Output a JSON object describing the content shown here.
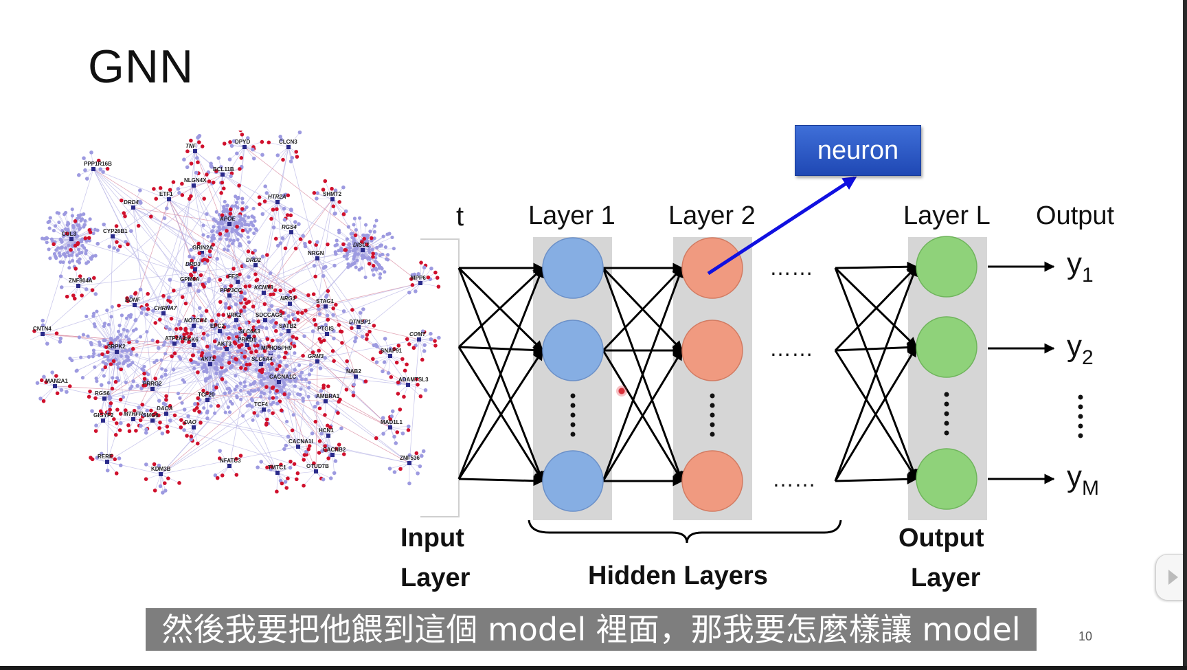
{
  "slide": {
    "title": "GNN",
    "page_number": "10",
    "subtitle": "然後我要把他餵到這個 model 裡面，那我要怎麼樣讓 model"
  },
  "neuron_callout": {
    "label": "neuron"
  },
  "network": {
    "column_labels": {
      "input_top": "t",
      "layer1": "Layer 1",
      "layer2": "Layer 2",
      "layerL": "Layer L",
      "output": "Output"
    },
    "input_layer_label": [
      "Input",
      "Layer"
    ],
    "hidden_layers_label": "Hidden Layers",
    "output_layer_label": [
      "Output",
      "Layer"
    ],
    "outputs": [
      {
        "base": "y",
        "sub": "1"
      },
      {
        "base": "y",
        "sub": "2"
      },
      {
        "base": "y",
        "sub": "M"
      }
    ],
    "ellipsis": "……",
    "colors": {
      "layer1_fill": "#86aee3",
      "layer2_fill": "#f09a80",
      "layerL_fill": "#8fd27a",
      "column_bg": "#d6d6d6",
      "callout_arrow": "#1010e0"
    }
  },
  "gene_network": {
    "colors": {
      "node_blue": "#9d9ae0",
      "node_red": "#d0102c",
      "edge_blue": "#b9b6e6",
      "edge_red": "#d98aa0"
    },
    "hubs": [
      {
        "label": "PPP1R16B",
        "italic": false
      },
      {
        "label": "TNF",
        "italic": true
      },
      {
        "label": "DPYD",
        "italic": false
      },
      {
        "label": "CLCN3",
        "italic": false
      },
      {
        "label": "BCL11B",
        "italic": false
      },
      {
        "label": "NLGN4X",
        "italic": false
      },
      {
        "label": "ETF1",
        "italic": false
      },
      {
        "label": "HTR2A",
        "italic": true
      },
      {
        "label": "SHMT2",
        "italic": false
      },
      {
        "label": "DRD4",
        "italic": true
      },
      {
        "label": "CUL3",
        "italic": false
      },
      {
        "label": "CYP26B1",
        "italic": false
      },
      {
        "label": "APOE",
        "italic": true
      },
      {
        "label": "RGS4",
        "italic": true
      },
      {
        "label": "GRIN2A",
        "italic": false
      },
      {
        "label": "DRD3",
        "italic": true
      },
      {
        "label": "DRD2",
        "italic": true
      },
      {
        "label": "NRGN",
        "italic": false
      },
      {
        "label": "DISC1",
        "italic": true
      },
      {
        "label": "GPM6A",
        "italic": false
      },
      {
        "label": "FES",
        "italic": false
      },
      {
        "label": "ZNF804A",
        "italic": false
      },
      {
        "label": "PPP3CC",
        "italic": true
      },
      {
        "label": "KCNN3",
        "italic": true
      },
      {
        "label": "MPP6",
        "italic": false
      },
      {
        "label": "BDNF",
        "italic": true
      },
      {
        "label": "CHRNA7",
        "italic": true
      },
      {
        "label": "NRG1",
        "italic": true
      },
      {
        "label": "STAG1",
        "italic": false
      },
      {
        "label": "VRK2",
        "italic": false
      },
      {
        "label": "SDCCAG8",
        "italic": false
      },
      {
        "label": "NOTCH4",
        "italic": true
      },
      {
        "label": "EPC2",
        "italic": false
      },
      {
        "label": "SATB2",
        "italic": false
      },
      {
        "label": "DTNBP1",
        "italic": true
      },
      {
        "label": "CNTN4",
        "italic": false
      },
      {
        "label": "SLC6A3",
        "italic": true
      },
      {
        "label": "PTGIS",
        "italic": false
      },
      {
        "label": "COMT",
        "italic": true
      },
      {
        "label": "SRPK2",
        "italic": false
      },
      {
        "label": "ATP2A2",
        "italic": false
      },
      {
        "label": "PAK6",
        "italic": false
      },
      {
        "label": "AKT3",
        "italic": false
      },
      {
        "label": "PRKD1",
        "italic": false
      },
      {
        "label": "MPHOSPH9",
        "italic": false
      },
      {
        "label": "SNAP91",
        "italic": false
      },
      {
        "label": "AKT1",
        "italic": true
      },
      {
        "label": "SLC6A4",
        "italic": true
      },
      {
        "label": "GRM3",
        "italic": true
      },
      {
        "label": "NAB2",
        "italic": false
      },
      {
        "label": "MAN2A1",
        "italic": false
      },
      {
        "label": "CACNA1C",
        "italic": false
      },
      {
        "label": "ADAMTSL3",
        "italic": false
      },
      {
        "label": "PRRG2",
        "italic": false
      },
      {
        "label": "RGS6",
        "italic": false
      },
      {
        "label": "TCF20",
        "italic": false
      },
      {
        "label": "AMBRA1",
        "italic": false
      },
      {
        "label": "DAOA",
        "italic": true
      },
      {
        "label": "TCF4",
        "italic": false
      },
      {
        "label": "GIGYF2",
        "italic": false
      },
      {
        "label": "MTHFR",
        "italic": true
      },
      {
        "label": "SMG6",
        "italic": false
      },
      {
        "label": "DAO",
        "italic": true
      },
      {
        "label": "MAD1L1",
        "italic": false
      },
      {
        "label": "HCN1",
        "italic": false
      },
      {
        "label": "CACNA1I",
        "italic": false
      },
      {
        "label": "ZNF536",
        "italic": false
      },
      {
        "label": "RERE",
        "italic": false
      },
      {
        "label": "NFATC3",
        "italic": false
      },
      {
        "label": "CACNB2",
        "italic": false
      },
      {
        "label": "KDM3B",
        "italic": false
      },
      {
        "label": "TMTC1",
        "italic": false
      },
      {
        "label": "OTUD7B",
        "italic": false
      }
    ]
  }
}
